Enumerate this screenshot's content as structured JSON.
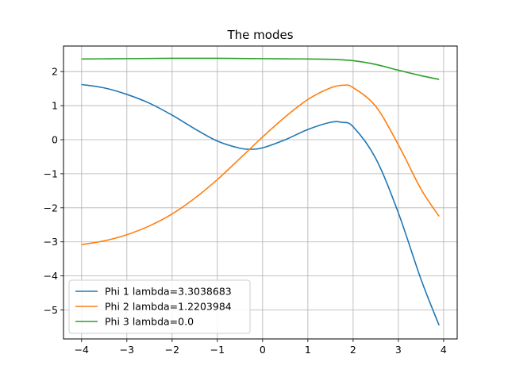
{
  "chart_data": {
    "type": "line",
    "title": "The modes",
    "xlabel": "",
    "ylabel": "",
    "xlim": [
      -4.4,
      4.3
    ],
    "ylim": [
      -5.85,
      2.75
    ],
    "xticks": [
      -4,
      -3,
      -2,
      -1,
      0,
      1,
      2,
      3,
      4
    ],
    "yticks": [
      2,
      1,
      0,
      -1,
      -2,
      -3,
      -4,
      -5
    ],
    "grid": true,
    "legend_position": "lower-left",
    "series": [
      {
        "name": "Phi 1 lambda=3.3038683",
        "color": "#1f77b4",
        "x": [
          -4.0,
          -3.5,
          -3.0,
          -2.5,
          -2.0,
          -1.5,
          -1.0,
          -0.5,
          -0.25,
          0.0,
          0.5,
          1.0,
          1.5,
          1.75,
          2.0,
          2.5,
          3.0,
          3.5,
          3.9
        ],
        "y": [
          1.62,
          1.52,
          1.33,
          1.07,
          0.72,
          0.32,
          -0.04,
          -0.25,
          -0.28,
          -0.24,
          0.0,
          0.3,
          0.51,
          0.51,
          0.38,
          -0.55,
          -2.15,
          -4.1,
          -5.45
        ]
      },
      {
        "name": "Phi 2 lambda=1.2203984",
        "color": "#ff7f0e",
        "x": [
          -4.0,
          -3.5,
          -3.0,
          -2.5,
          -2.0,
          -1.5,
          -1.0,
          -0.5,
          0.0,
          0.5,
          1.0,
          1.5,
          1.8,
          2.0,
          2.5,
          3.0,
          3.5,
          3.9
        ],
        "y": [
          -3.08,
          -2.97,
          -2.79,
          -2.53,
          -2.18,
          -1.72,
          -1.17,
          -0.55,
          0.08,
          0.67,
          1.18,
          1.52,
          1.6,
          1.53,
          0.98,
          -0.15,
          -1.45,
          -2.25
        ]
      },
      {
        "name": "Phi 3 lambda=0.0",
        "color": "#2ca02c",
        "x": [
          -4.0,
          -3.0,
          -2.0,
          -1.0,
          0.0,
          1.0,
          1.5,
          2.0,
          2.5,
          3.0,
          3.5,
          3.9
        ],
        "y": [
          2.37,
          2.38,
          2.39,
          2.39,
          2.38,
          2.37,
          2.36,
          2.32,
          2.21,
          2.04,
          1.88,
          1.77
        ]
      }
    ]
  }
}
